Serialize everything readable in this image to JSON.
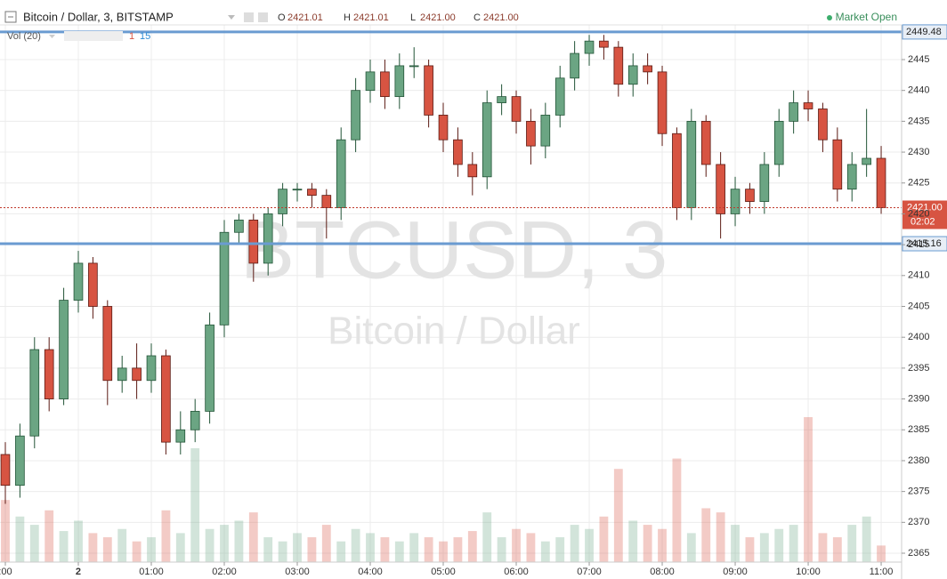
{
  "chart_data": {
    "type": "candlestick",
    "title": "Bitcoin / Dollar, 3, BITSTAMP",
    "ohlc": [
      {
        "label": "O",
        "value": "2421.01"
      },
      {
        "label": "H",
        "value": "2421.01"
      },
      {
        "label": "L",
        "value": "2421.00"
      },
      {
        "label": "C",
        "value": "2421.00"
      }
    ],
    "status": "Market Open",
    "volume_label": "Vol (20)",
    "volume_last": "1",
    "volume_ma": "15",
    "watermark": [
      "BTCUSD, 3",
      "Bitcoin / Dollar"
    ],
    "x": [
      -1,
      -0.8,
      -0.6,
      -0.4,
      -0.2,
      0,
      0.2,
      0.4,
      0.6,
      0.8,
      1,
      1.2,
      1.4,
      1.6,
      1.8,
      2,
      2.2,
      2.4,
      2.6,
      2.8,
      3,
      3.2,
      3.4,
      3.6,
      3.8,
      4,
      4.2,
      4.4,
      4.6,
      4.8,
      5,
      5.2,
      5.4,
      5.6,
      5.8,
      6,
      6.2,
      6.4,
      6.6,
      6.8,
      7,
      7.2,
      7.4,
      7.6,
      7.8,
      8,
      8.2,
      8.4,
      8.6,
      8.8,
      9,
      9.2,
      9.4,
      9.6,
      9.8,
      10,
      10.2,
      10.4,
      10.6,
      10.8,
      11
    ],
    "open": [
      2381,
      2376,
      2384,
      2398,
      2390,
      2406,
      2412,
      2405,
      2393,
      2395,
      2393,
      2397,
      2383,
      2385,
      2388,
      2402,
      2417,
      2419,
      2412,
      2420,
      2424,
      2424,
      2423,
      2421,
      2432,
      2440,
      2443,
      2439,
      2444,
      2444,
      2436,
      2432,
      2428,
      2426,
      2438,
      2439,
      2435,
      2431,
      2436,
      2442,
      2446,
      2448,
      2447,
      2441,
      2444,
      2443,
      2433,
      2421,
      2435,
      2428,
      2420,
      2424,
      2422,
      2428,
      2435,
      2438,
      2437,
      2432,
      2424,
      2428,
      2429
    ],
    "high": [
      2383,
      2386,
      2400,
      2400,
      2408,
      2414,
      2413,
      2406,
      2397,
      2399,
      2399,
      2398,
      2388,
      2390,
      2404,
      2419,
      2420,
      2420,
      2421,
      2425,
      2425,
      2425,
      2424,
      2434,
      2442,
      2445,
      2445,
      2446,
      2447,
      2445,
      2438,
      2434,
      2430,
      2440,
      2441,
      2440,
      2437,
      2438,
      2444,
      2448,
      2449,
      2449,
      2448,
      2446,
      2446,
      2444,
      2434,
      2437,
      2436,
      2430,
      2426,
      2425,
      2430,
      2437,
      2440,
      2440,
      2438,
      2434,
      2430,
      2437,
      2431
    ],
    "low": [
      2373,
      2374,
      2382,
      2388,
      2389,
      2404,
      2403,
      2389,
      2391,
      2390,
      2391,
      2381,
      2381,
      2383,
      2386,
      2400,
      2415,
      2409,
      2410,
      2418,
      2422,
      2421,
      2416,
      2419,
      2430,
      2438,
      2437,
      2437,
      2442,
      2434,
      2430,
      2426,
      2423,
      2424,
      2436,
      2433,
      2428,
      2429,
      2434,
      2440,
      2444,
      2445,
      2439,
      2439,
      2441,
      2431,
      2419,
      2419,
      2426,
      2416,
      2418,
      2420,
      2420,
      2426,
      2433,
      2435,
      2430,
      2422,
      2422,
      2426,
      2420
    ],
    "close": [
      2376,
      2384,
      2398,
      2390,
      2406,
      2412,
      2405,
      2393,
      2395,
      2393,
      2397,
      2383,
      2385,
      2388,
      2402,
      2417,
      2419,
      2412,
      2420,
      2424,
      2424,
      2423,
      2421,
      2432,
      2440,
      2443,
      2439,
      2444,
      2444,
      2436,
      2432,
      2428,
      2426,
      2438,
      2439,
      2435,
      2431,
      2436,
      2442,
      2446,
      2448,
      2447,
      2441,
      2444,
      2443,
      2433,
      2421,
      2435,
      2428,
      2420,
      2424,
      2422,
      2428,
      2435,
      2438,
      2437,
      2432,
      2424,
      2428,
      2429,
      2421
    ],
    "volume": [
      30,
      22,
      18,
      25,
      15,
      20,
      14,
      12,
      16,
      10,
      12,
      25,
      14,
      55,
      16,
      18,
      20,
      24,
      12,
      10,
      14,
      12,
      18,
      10,
      16,
      14,
      12,
      10,
      14,
      12,
      10,
      12,
      15,
      24,
      12,
      16,
      14,
      10,
      12,
      18,
      16,
      22,
      45,
      20,
      18,
      16,
      50,
      14,
      26,
      24,
      18,
      12,
      14,
      16,
      18,
      70,
      14,
      12,
      18,
      22,
      8
    ],
    "up_color": "#6ba583",
    "down_color": "#d75442",
    "xlim": [
      -1.073,
      11.28
    ],
    "xticks": [
      {
        "value": -1,
        "label": ":00"
      },
      {
        "value": 0,
        "label": "2"
      },
      {
        "value": 1,
        "label": "01:00"
      },
      {
        "value": 2,
        "label": "02:00"
      },
      {
        "value": 3,
        "label": "03:00"
      },
      {
        "value": 4,
        "label": "04:00"
      },
      {
        "value": 5,
        "label": "05:00"
      },
      {
        "value": 6,
        "label": "06:00"
      },
      {
        "value": 7,
        "label": "07:00"
      },
      {
        "value": 8,
        "label": "08:00"
      },
      {
        "value": 9,
        "label": "09:00"
      },
      {
        "value": 10,
        "label": "10:00"
      },
      {
        "value": 11,
        "label": "11:00"
      }
    ],
    "ylim": [
      2363.56,
      2450.62
    ],
    "yticks": [
      2365,
      2370,
      2375,
      2380,
      2385,
      2390,
      2395,
      2400,
      2405,
      2410,
      2415,
      2420,
      2425,
      2430,
      2435,
      2440,
      2445
    ],
    "grid": true,
    "levels": [
      2449.48,
      2415.16
    ],
    "level_color": "#6a9bd1",
    "last_price": {
      "value": 2421,
      "label": "2421.00"
    },
    "countdown": "02:02"
  }
}
